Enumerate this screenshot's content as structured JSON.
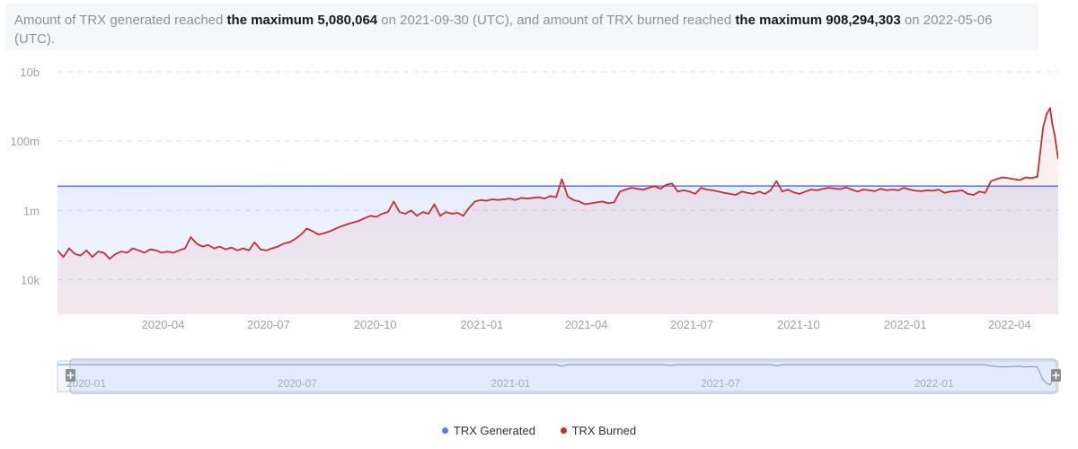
{
  "summary": {
    "part1": "Amount of TRX generated reached ",
    "gen_max_label": "the maximum 5,080,064",
    "part2": " on 2021-09-30 (UTC), and amount of TRX burned reached ",
    "burn_max_label": "the maximum 908,294,303",
    "part3": " on 2022-05-06 (UTC)."
  },
  "legend": {
    "generated": "TRX Generated",
    "burned": "TRX Burned"
  },
  "colors": {
    "generated": "#5b7cf0",
    "burned": "#c62f2f",
    "grid": "#e2e2e2",
    "axis_text": "#9aa3ab",
    "navigator": "#5b7cf0"
  },
  "chart_data": {
    "type": "line",
    "yscale": "log",
    "ylim": [
      1000,
      10000000000
    ],
    "yticks": [
      {
        "value": 10000,
        "label": "10k"
      },
      {
        "value": 1000000,
        "label": "1m"
      },
      {
        "value": 100000000,
        "label": "100m"
      },
      {
        "value": 10000000000,
        "label": "10b"
      }
    ],
    "xlim": [
      "2020-01-01",
      "2022-05-13"
    ],
    "xticks": [
      "2020-04",
      "2020-07",
      "2020-10",
      "2021-01",
      "2021-04",
      "2021-07",
      "2021-10",
      "2022-01",
      "2022-04"
    ],
    "navigator_ticks": [
      "2020-01",
      "2020-07",
      "2021-01",
      "2021-07",
      "2022-01"
    ],
    "series": [
      {
        "name": "TRX Generated",
        "color": "#5b7cf0",
        "style": "area",
        "points": [
          [
            "2020-01-01",
            5000000
          ],
          [
            "2021-09-30",
            5080064
          ],
          [
            "2022-05-13",
            5000000
          ]
        ]
      },
      {
        "name": "TRX Burned",
        "color": "#c62f2f",
        "style": "area",
        "points": [
          [
            "2020-01-01",
            70000
          ],
          [
            "2020-01-06",
            45000
          ],
          [
            "2020-01-11",
            80000
          ],
          [
            "2020-01-16",
            55000
          ],
          [
            "2020-01-21",
            50000
          ],
          [
            "2020-01-26",
            70000
          ],
          [
            "2020-01-31",
            45000
          ],
          [
            "2020-02-05",
            65000
          ],
          [
            "2020-02-10",
            60000
          ],
          [
            "2020-02-15",
            40000
          ],
          [
            "2020-02-20",
            55000
          ],
          [
            "2020-02-25",
            65000
          ],
          [
            "2020-03-01",
            60000
          ],
          [
            "2020-03-06",
            80000
          ],
          [
            "2020-03-11",
            70000
          ],
          [
            "2020-03-16",
            60000
          ],
          [
            "2020-03-21",
            75000
          ],
          [
            "2020-03-26",
            70000
          ],
          [
            "2020-03-31",
            60000
          ],
          [
            "2020-04-05",
            65000
          ],
          [
            "2020-04-10",
            60000
          ],
          [
            "2020-04-15",
            70000
          ],
          [
            "2020-04-20",
            80000
          ],
          [
            "2020-04-25",
            170000
          ],
          [
            "2020-04-30",
            110000
          ],
          [
            "2020-05-05",
            90000
          ],
          [
            "2020-05-10",
            100000
          ],
          [
            "2020-05-15",
            80000
          ],
          [
            "2020-05-20",
            90000
          ],
          [
            "2020-05-25",
            75000
          ],
          [
            "2020-05-30",
            85000
          ],
          [
            "2020-06-04",
            70000
          ],
          [
            "2020-06-09",
            80000
          ],
          [
            "2020-06-14",
            70000
          ],
          [
            "2020-06-19",
            120000
          ],
          [
            "2020-06-24",
            75000
          ],
          [
            "2020-06-29",
            70000
          ],
          [
            "2020-07-04",
            80000
          ],
          [
            "2020-07-09",
            90000
          ],
          [
            "2020-07-14",
            110000
          ],
          [
            "2020-07-19",
            120000
          ],
          [
            "2020-07-24",
            150000
          ],
          [
            "2020-07-29",
            200000
          ],
          [
            "2020-08-03",
            300000
          ],
          [
            "2020-08-08",
            250000
          ],
          [
            "2020-08-13",
            200000
          ],
          [
            "2020-08-18",
            220000
          ],
          [
            "2020-08-23",
            250000
          ],
          [
            "2020-08-28",
            300000
          ],
          [
            "2020-09-02",
            350000
          ],
          [
            "2020-09-07",
            400000
          ],
          [
            "2020-09-12",
            450000
          ],
          [
            "2020-09-17",
            500000
          ],
          [
            "2020-09-22",
            600000
          ],
          [
            "2020-09-27",
            700000
          ],
          [
            "2020-10-02",
            650000
          ],
          [
            "2020-10-07",
            800000
          ],
          [
            "2020-10-12",
            900000
          ],
          [
            "2020-10-17",
            1800000
          ],
          [
            "2020-10-22",
            900000
          ],
          [
            "2020-10-27",
            800000
          ],
          [
            "2020-11-01",
            1000000
          ],
          [
            "2020-11-06",
            700000
          ],
          [
            "2020-11-11",
            900000
          ],
          [
            "2020-11-16",
            800000
          ],
          [
            "2020-11-21",
            1500000
          ],
          [
            "2020-11-26",
            700000
          ],
          [
            "2020-12-01",
            900000
          ],
          [
            "2020-12-06",
            800000
          ],
          [
            "2020-12-11",
            850000
          ],
          [
            "2020-12-16",
            700000
          ],
          [
            "2020-12-21",
            1200000
          ],
          [
            "2020-12-26",
            1800000
          ],
          [
            "2020-12-31",
            2000000
          ],
          [
            "2021-01-05",
            1900000
          ],
          [
            "2021-01-10",
            2100000
          ],
          [
            "2021-01-15",
            2000000
          ],
          [
            "2021-01-20",
            2100000
          ],
          [
            "2021-01-25",
            2200000
          ],
          [
            "2021-01-30",
            2000000
          ],
          [
            "2021-02-04",
            2300000
          ],
          [
            "2021-02-09",
            2200000
          ],
          [
            "2021-02-14",
            2300000
          ],
          [
            "2021-02-19",
            2400000
          ],
          [
            "2021-02-24",
            2200000
          ],
          [
            "2021-03-01",
            2600000
          ],
          [
            "2021-03-06",
            2400000
          ],
          [
            "2021-03-11",
            8000000
          ],
          [
            "2021-03-16",
            2500000
          ],
          [
            "2021-03-21",
            2000000
          ],
          [
            "2021-03-26",
            1800000
          ],
          [
            "2021-03-31",
            1500000
          ],
          [
            "2021-04-05",
            1600000
          ],
          [
            "2021-04-10",
            1700000
          ],
          [
            "2021-04-15",
            1800000
          ],
          [
            "2021-04-20",
            1600000
          ],
          [
            "2021-04-25",
            1700000
          ],
          [
            "2021-04-30",
            3500000
          ],
          [
            "2021-05-05",
            4000000
          ],
          [
            "2021-05-10",
            4500000
          ],
          [
            "2021-05-15",
            4200000
          ],
          [
            "2021-05-20",
            4000000
          ],
          [
            "2021-05-25",
            4500000
          ],
          [
            "2021-05-30",
            5000000
          ],
          [
            "2021-06-04",
            4200000
          ],
          [
            "2021-06-09",
            5500000
          ],
          [
            "2021-06-14",
            6000000
          ],
          [
            "2021-06-19",
            3500000
          ],
          [
            "2021-06-24",
            3800000
          ],
          [
            "2021-06-29",
            3500000
          ],
          [
            "2021-07-04",
            3000000
          ],
          [
            "2021-07-09",
            4500000
          ],
          [
            "2021-07-14",
            4000000
          ],
          [
            "2021-07-19",
            3800000
          ],
          [
            "2021-07-24",
            3500000
          ],
          [
            "2021-07-29",
            3200000
          ],
          [
            "2021-08-03",
            3000000
          ],
          [
            "2021-08-08",
            2800000
          ],
          [
            "2021-08-13",
            3500000
          ],
          [
            "2021-08-18",
            3200000
          ],
          [
            "2021-08-23",
            3000000
          ],
          [
            "2021-08-28",
            3500000
          ],
          [
            "2021-09-02",
            3000000
          ],
          [
            "2021-09-07",
            3800000
          ],
          [
            "2021-09-12",
            7000000
          ],
          [
            "2021-09-17",
            3500000
          ],
          [
            "2021-09-22",
            4000000
          ],
          [
            "2021-09-27",
            3300000
          ],
          [
            "2021-10-02",
            3000000
          ],
          [
            "2021-10-07",
            3500000
          ],
          [
            "2021-10-12",
            4000000
          ],
          [
            "2021-10-17",
            3800000
          ],
          [
            "2021-10-22",
            4200000
          ],
          [
            "2021-10-27",
            4500000
          ],
          [
            "2021-11-01",
            4300000
          ],
          [
            "2021-11-06",
            4100000
          ],
          [
            "2021-11-11",
            4600000
          ],
          [
            "2021-11-16",
            4000000
          ],
          [
            "2021-11-21",
            3500000
          ],
          [
            "2021-11-26",
            4000000
          ],
          [
            "2021-12-01",
            3800000
          ],
          [
            "2021-12-06",
            3600000
          ],
          [
            "2021-12-11",
            4200000
          ],
          [
            "2021-12-16",
            3800000
          ],
          [
            "2021-12-21",
            4000000
          ],
          [
            "2021-12-26",
            3800000
          ],
          [
            "2021-12-31",
            4500000
          ],
          [
            "2022-01-05",
            4000000
          ],
          [
            "2022-01-10",
            3700000
          ],
          [
            "2022-01-15",
            3600000
          ],
          [
            "2022-01-20",
            3800000
          ],
          [
            "2022-01-25",
            3700000
          ],
          [
            "2022-01-30",
            4000000
          ],
          [
            "2022-02-04",
            3200000
          ],
          [
            "2022-02-09",
            3500000
          ],
          [
            "2022-02-14",
            3600000
          ],
          [
            "2022-02-19",
            3800000
          ],
          [
            "2022-02-24",
            3000000
          ],
          [
            "2022-03-01",
            2800000
          ],
          [
            "2022-03-06",
            3500000
          ],
          [
            "2022-03-11",
            3200000
          ],
          [
            "2022-03-16",
            7000000
          ],
          [
            "2022-03-21",
            8000000
          ],
          [
            "2022-03-26",
            9000000
          ],
          [
            "2022-03-31",
            8500000
          ],
          [
            "2022-04-05",
            8000000
          ],
          [
            "2022-04-10",
            7500000
          ],
          [
            "2022-04-15",
            9000000
          ],
          [
            "2022-04-20",
            8500000
          ],
          [
            "2022-04-25",
            9500000
          ],
          [
            "2022-04-30",
            250000000
          ],
          [
            "2022-05-03",
            600000000
          ],
          [
            "2022-05-06",
            908294303
          ],
          [
            "2022-05-08",
            300000000
          ],
          [
            "2022-05-10",
            150000000
          ],
          [
            "2022-05-12",
            50000000
          ],
          [
            "2022-05-13",
            30000000
          ]
        ]
      }
    ]
  }
}
